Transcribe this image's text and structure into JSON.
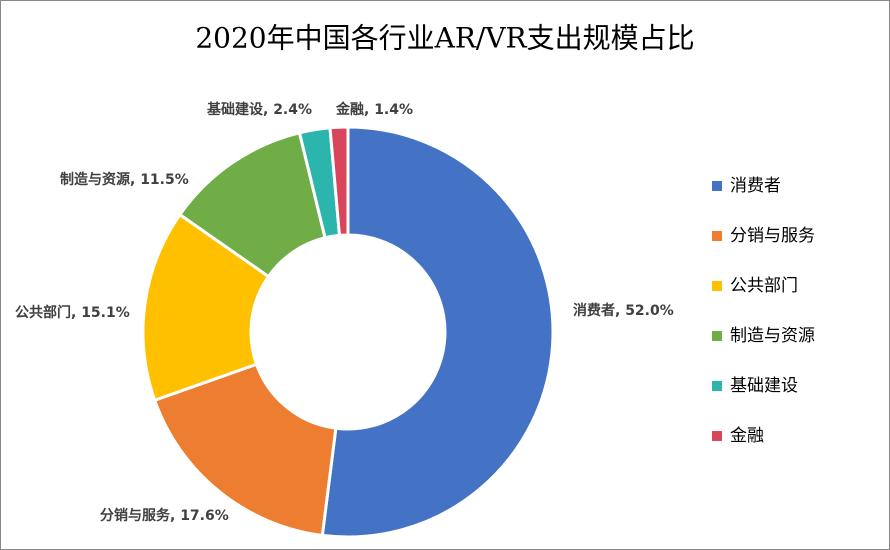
{
  "chart_data": {
    "type": "donut",
    "title": "2020年中国各行业AR/VR支出规模占比",
    "categories": [
      "消费者",
      "分销与服务",
      "公共部门",
      "制造与资源",
      "基础建设",
      "金融"
    ],
    "values": [
      52.0,
      17.6,
      15.1,
      11.5,
      2.4,
      1.4
    ],
    "value_labels": [
      "消费者, 52.0%",
      "分销与服务, 17.6%",
      "公共部门, 15.1%",
      "制造与资源, 11.5%",
      "基础建设, 2.4%",
      "金融, 1.4%"
    ],
    "colors": [
      "#4472c4",
      "#ed7d31",
      "#ffc000",
      "#70ad47",
      "#2cb5ad",
      "#d9455b"
    ],
    "legend": "right"
  }
}
